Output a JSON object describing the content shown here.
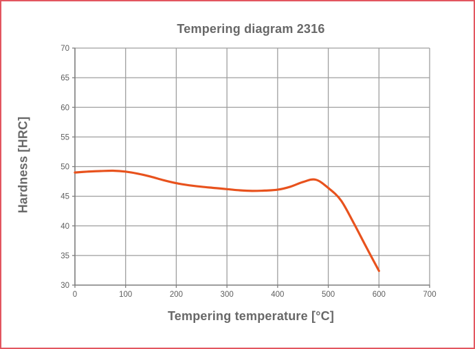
{
  "frame": {
    "border_color": "#e2565f",
    "background": "#ffffff"
  },
  "chart_data": {
    "type": "line",
    "title": "Tempering diagram 2316",
    "xlabel": "Tempering temperature [°C]",
    "ylabel": "Hardness [HRC]",
    "xlim": [
      0,
      700
    ],
    "ylim": [
      30,
      70
    ],
    "x_ticks": [
      0,
      100,
      200,
      300,
      400,
      500,
      600,
      700
    ],
    "y_ticks": [
      30,
      35,
      40,
      45,
      50,
      55,
      60,
      65,
      70
    ],
    "grid": true,
    "legend": false,
    "series": [
      {
        "name": "hardness-curve",
        "color": "#e8521d",
        "x": [
          0,
          25,
          50,
          75,
          100,
          125,
          150,
          175,
          200,
          225,
          250,
          275,
          300,
          325,
          350,
          375,
          400,
          425,
          450,
          475,
          500,
          525,
          550,
          575,
          600
        ],
        "y": [
          49.0,
          49.15,
          49.25,
          49.3,
          49.15,
          48.8,
          48.3,
          47.7,
          47.2,
          46.85,
          46.6,
          46.4,
          46.2,
          46.0,
          45.9,
          45.95,
          46.1,
          46.6,
          47.4,
          47.8,
          46.4,
          44.3,
          40.5,
          36.4,
          32.4
        ]
      }
    ],
    "colors": {
      "grid": "#9e9e9e",
      "axis": "#7d7d7d",
      "text": "#686868",
      "tick_text": "#5d5d5d"
    }
  }
}
